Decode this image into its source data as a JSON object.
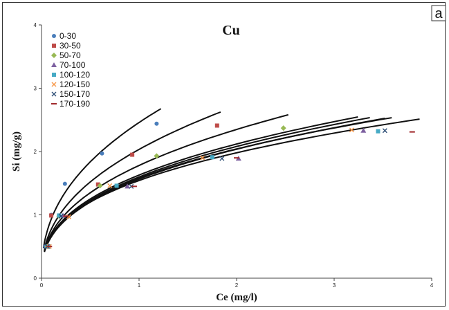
{
  "chart_data": {
    "type": "scatter",
    "title": "Cu",
    "panel_label": "a",
    "xlabel": "Ce (mg/l)",
    "ylabel": "Si (mg/g)",
    "xlim": [
      0,
      4
    ],
    "ylim": [
      0,
      4
    ],
    "xticks": [
      "0",
      "1",
      "2",
      "3",
      "4"
    ],
    "yticks": [
      "0",
      "1",
      "2",
      "3",
      "4"
    ],
    "grid": false,
    "legend_position": "top-left",
    "series": [
      {
        "name": "0-30",
        "color": "#4a7ebb",
        "marker": "circle",
        "x": [
          0.04,
          0.1,
          0.24,
          0.62,
          1.18
        ],
        "y": [
          0.5,
          1.0,
          1.49,
          1.97,
          2.44
        ],
        "fit_x": [
          0.02,
          1.2
        ],
        "fit_exp": 0.42
      },
      {
        "name": "30-50",
        "color": "#be4b48",
        "marker": "square",
        "x": [
          0.07,
          0.1,
          0.58,
          0.93,
          1.8
        ],
        "y": [
          0.5,
          0.99,
          1.48,
          1.95,
          2.41
        ],
        "fit_x": [
          0.03,
          1.8
        ],
        "fit_exp": 0.42
      },
      {
        "name": "50-70",
        "color": "#98b954",
        "marker": "diamond",
        "x": [
          0.06,
          0.18,
          0.6,
          1.18,
          2.48
        ],
        "y": [
          0.5,
          0.98,
          1.46,
          1.93,
          2.37
        ],
        "fit_x": [
          0.03,
          2.48
        ],
        "fit_exp": 0.4
      },
      {
        "name": "70-100",
        "color": "#7d60a0",
        "marker": "triangle",
        "x": [
          0.07,
          0.22,
          0.88,
          2.02,
          3.3
        ],
        "y": [
          0.5,
          0.99,
          1.45,
          1.89,
          2.33
        ],
        "fit_x": [
          0.03,
          3.3
        ],
        "fit_exp": 0.38
      },
      {
        "name": "100-120",
        "color": "#46aac5",
        "marker": "square",
        "x": [
          0.07,
          0.18,
          0.77,
          1.75,
          3.45
        ],
        "y": [
          0.5,
          0.99,
          1.46,
          1.91,
          2.32
        ],
        "fit_x": [
          0.03,
          3.45
        ],
        "fit_exp": 0.38
      },
      {
        "name": "120-150",
        "color": "#f79646",
        "marker": "x",
        "x": [
          0.08,
          0.28,
          0.7,
          1.65,
          3.18
        ],
        "y": [
          0.5,
          0.97,
          1.46,
          1.9,
          2.34
        ],
        "fit_x": [
          0.03,
          3.18
        ],
        "fit_exp": 0.38
      },
      {
        "name": "150-170",
        "color": "#2c4d75",
        "marker": "x",
        "x": [
          0.06,
          0.2,
          0.92,
          1.85,
          3.52
        ],
        "y": [
          0.5,
          0.98,
          1.45,
          1.89,
          2.33
        ],
        "fit_x": [
          0.03,
          3.52
        ],
        "fit_exp": 0.37
      },
      {
        "name": "170-190",
        "color": "#a0282b",
        "marker": "dash",
        "x": [
          0.08,
          0.25,
          0.95,
          2.0,
          3.8
        ],
        "y": [
          0.5,
          0.98,
          1.45,
          1.9,
          2.31
        ],
        "fit_x": [
          0.03,
          3.8
        ],
        "fit_exp": 0.36
      }
    ]
  }
}
